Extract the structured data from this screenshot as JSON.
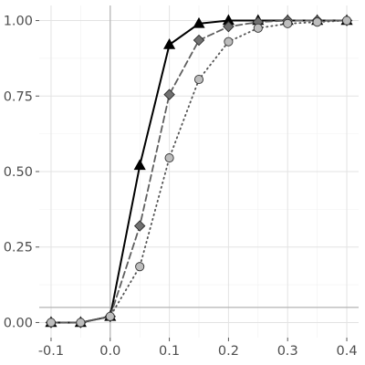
{
  "chart_data": {
    "type": "line",
    "title": "",
    "xlabel": "",
    "ylabel": "",
    "xlim": [
      -0.12,
      0.42
    ],
    "ylim": [
      -0.05,
      1.05
    ],
    "grid": true,
    "legend": "none",
    "x_ticks": [
      "-0.1",
      "-0.05",
      "0.0",
      "0.05",
      "0.1",
      "0.15",
      "0.2",
      "0.25",
      "0.3",
      "0.35",
      "0.4"
    ],
    "x_tick_labels": [
      "-0.1",
      "",
      "0.0",
      "",
      "0.1",
      "",
      "0.2",
      "",
      "0.3",
      "",
      "0.4"
    ],
    "y_tick_labels": [
      "0.00",
      "0.25",
      "0.50",
      "0.75",
      "1.00"
    ],
    "reference_lines": {
      "vline_x": 0.0,
      "hline_y": 0.05
    },
    "x": [
      -0.1,
      -0.05,
      0.0,
      0.05,
      0.1,
      0.15,
      0.2,
      0.25,
      0.3,
      0.35,
      0.4
    ],
    "series": [
      {
        "values": [
          0.0,
          0.0,
          0.02,
          0.52,
          0.92,
          0.99,
          1.0,
          1.0,
          1.0,
          1.0,
          1.0
        ],
        "marker": "triangle",
        "linestyle": "solid",
        "color": "#000000",
        "fill": "#000000"
      },
      {
        "values": [
          0.0,
          0.0,
          0.02,
          0.32,
          0.755,
          0.935,
          0.98,
          0.995,
          1.0,
          1.0,
          1.0
        ],
        "marker": "diamond",
        "linestyle": "dashed",
        "color": "#5f5f5f",
        "fill": "#707070"
      },
      {
        "values": [
          0.0,
          0.0,
          0.02,
          0.185,
          0.545,
          0.805,
          0.93,
          0.975,
          0.99,
          0.995,
          1.0
        ],
        "marker": "circle",
        "linestyle": "dotted",
        "color": "#555555",
        "fill": "#bdbdbd"
      }
    ]
  }
}
